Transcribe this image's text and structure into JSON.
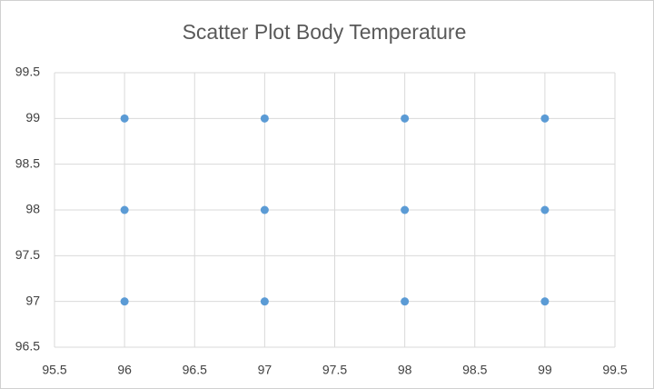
{
  "chart_data": {
    "type": "scatter",
    "title": "Scatter Plot Body Temperature",
    "x": [
      96,
      96,
      96,
      97,
      97,
      97,
      98,
      98,
      98,
      99,
      99,
      99
    ],
    "values": [
      97,
      98,
      99,
      97,
      98,
      99,
      97,
      98,
      99,
      97,
      98,
      99
    ],
    "color": "#5b9bd5",
    "xlim": [
      95.5,
      99.5
    ],
    "xticks": [
      95.5,
      96,
      96.5,
      97,
      97.5,
      98,
      98.5,
      99,
      99.5
    ],
    "ylim": [
      96.5,
      99.5
    ],
    "yticks": [
      96.5,
      97,
      97.5,
      98,
      98.5,
      99,
      99.5
    ],
    "grid": true
  }
}
